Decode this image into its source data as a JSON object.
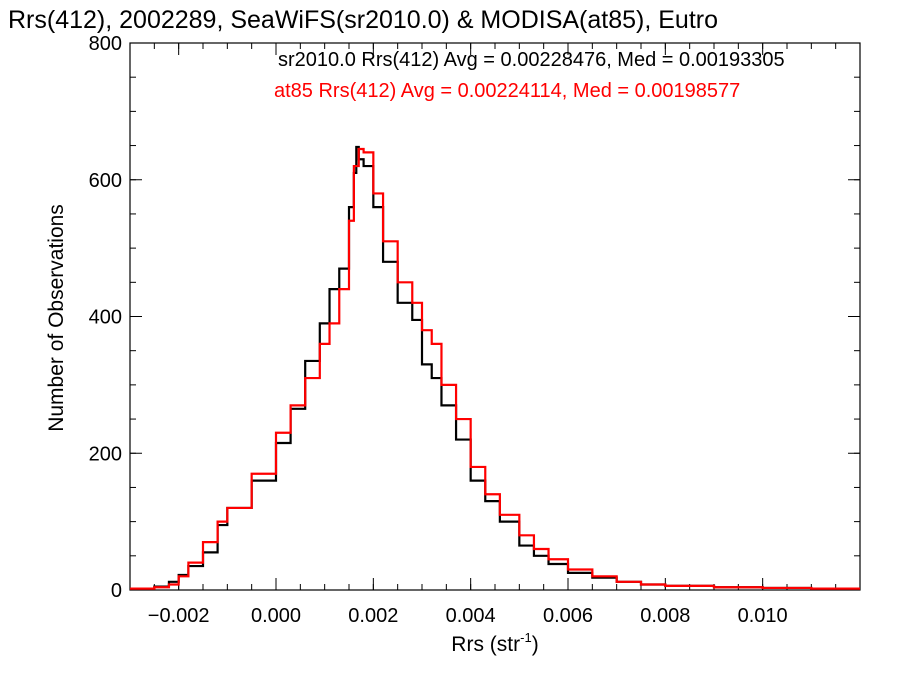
{
  "chart_data": {
    "type": "line",
    "title": "Rrs(412), 2002289, SeaWiFS(sr2010.0) & MODISA(at85), Eutro",
    "xlabel": "Rrs (str",
    "xlabel_sup": "-1",
    "xlabel_close": ")",
    "ylabel": "Number of Observations",
    "xlim": [
      -0.003,
      0.012
    ],
    "ylim": [
      0,
      800
    ],
    "xticks": [
      -0.002,
      0.0,
      0.002,
      0.004,
      0.006,
      0.008,
      0.01
    ],
    "xtick_labels": [
      "−0.002",
      "0.000",
      "0.002",
      "0.004",
      "0.006",
      "0.008",
      "0.010"
    ],
    "yticks": [
      0,
      200,
      400,
      600,
      800
    ],
    "ytick_labels": [
      "0",
      "200",
      "400",
      "600",
      "800"
    ],
    "step": "histogram",
    "series": [
      {
        "name": "sr2010.0 Rrs(412) Avg = 0.00228476, Med = 0.00193305",
        "color": "#000000",
        "points": [
          [
            -0.003,
            2
          ],
          [
            -0.0025,
            5
          ],
          [
            -0.0022,
            12
          ],
          [
            -0.002,
            22
          ],
          [
            -0.0018,
            35
          ],
          [
            -0.0015,
            55
          ],
          [
            -0.0012,
            95
          ],
          [
            -0.001,
            120
          ],
          [
            -0.0005,
            160
          ],
          [
            0.0,
            215
          ],
          [
            0.0003,
            265
          ],
          [
            0.0006,
            335
          ],
          [
            0.0009,
            390
          ],
          [
            0.0011,
            440
          ],
          [
            0.0013,
            470
          ],
          [
            0.0015,
            560
          ],
          [
            0.0016,
            610
          ],
          [
            0.00165,
            648
          ],
          [
            0.0017,
            630
          ],
          [
            0.0018,
            620
          ],
          [
            0.002,
            560
          ],
          [
            0.0022,
            480
          ],
          [
            0.0025,
            420
          ],
          [
            0.0028,
            395
          ],
          [
            0.003,
            330
          ],
          [
            0.0032,
            310
          ],
          [
            0.0034,
            270
          ],
          [
            0.0037,
            220
          ],
          [
            0.004,
            160
          ],
          [
            0.0043,
            130
          ],
          [
            0.0046,
            100
          ],
          [
            0.005,
            65
          ],
          [
            0.0053,
            50
          ],
          [
            0.0056,
            38
          ],
          [
            0.006,
            25
          ],
          [
            0.0065,
            18
          ],
          [
            0.007,
            12
          ],
          [
            0.0075,
            8
          ],
          [
            0.008,
            6
          ],
          [
            0.009,
            4
          ],
          [
            0.01,
            3
          ],
          [
            0.011,
            2
          ],
          [
            0.012,
            2
          ]
        ]
      },
      {
        "name": "at85 Rrs(412) Avg = 0.00224114, Med = 0.00198577",
        "color": "#ff0000",
        "points": [
          [
            -0.003,
            2
          ],
          [
            -0.0025,
            4
          ],
          [
            -0.0022,
            8
          ],
          [
            -0.002,
            20
          ],
          [
            -0.0018,
            40
          ],
          [
            -0.0015,
            70
          ],
          [
            -0.0012,
            100
          ],
          [
            -0.001,
            120
          ],
          [
            -0.0005,
            170
          ],
          [
            0.0,
            230
          ],
          [
            0.0003,
            270
          ],
          [
            0.0006,
            310
          ],
          [
            0.0009,
            360
          ],
          [
            0.0011,
            390
          ],
          [
            0.0013,
            440
          ],
          [
            0.0015,
            540
          ],
          [
            0.0016,
            620
          ],
          [
            0.0017,
            645
          ],
          [
            0.0018,
            640
          ],
          [
            0.002,
            580
          ],
          [
            0.0022,
            510
          ],
          [
            0.0025,
            450
          ],
          [
            0.0028,
            420
          ],
          [
            0.003,
            380
          ],
          [
            0.0032,
            360
          ],
          [
            0.0034,
            300
          ],
          [
            0.0037,
            250
          ],
          [
            0.004,
            180
          ],
          [
            0.0043,
            140
          ],
          [
            0.0046,
            110
          ],
          [
            0.005,
            80
          ],
          [
            0.0053,
            60
          ],
          [
            0.0056,
            45
          ],
          [
            0.006,
            30
          ],
          [
            0.0065,
            20
          ],
          [
            0.007,
            12
          ],
          [
            0.0075,
            8
          ],
          [
            0.008,
            6
          ],
          [
            0.009,
            4
          ],
          [
            0.01,
            3
          ],
          [
            0.011,
            2
          ],
          [
            0.012,
            2
          ]
        ]
      }
    ],
    "grid": false,
    "legend_position": "top"
  }
}
